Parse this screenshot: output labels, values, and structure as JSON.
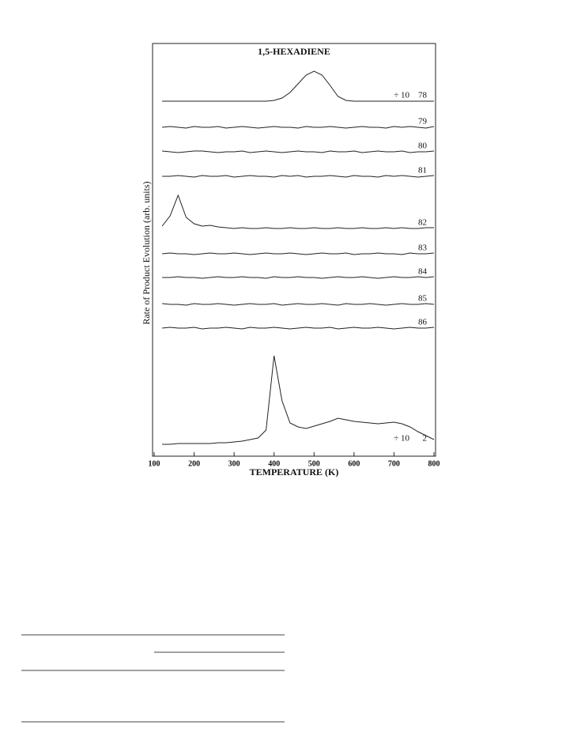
{
  "chart_data": {
    "type": "line",
    "title": "1,5-HEXADIENE",
    "x_label": "TEMPERATURE (K)",
    "y_label": "Rate of Product Evolution (arb. units)",
    "xlim": [
      100,
      800
    ],
    "xticks": [
      100,
      200,
      300,
      400,
      500,
      600,
      700,
      800
    ],
    "x": [
      120,
      140,
      160,
      180,
      200,
      220,
      240,
      260,
      280,
      300,
      320,
      340,
      360,
      380,
      400,
      420,
      440,
      460,
      480,
      500,
      520,
      540,
      560,
      580,
      600,
      620,
      640,
      660,
      680,
      700,
      720,
      740,
      760,
      780,
      800
    ],
    "series": [
      {
        "name": "78",
        "annotation": "÷ 10",
        "color": "#222",
        "values": [
          0,
          0,
          0,
          0,
          0,
          0,
          0,
          0,
          0,
          0,
          0,
          0,
          0,
          0,
          1,
          4,
          11,
          22,
          33,
          38,
          33,
          20,
          6,
          1,
          0,
          0,
          0,
          0,
          0,
          0,
          0,
          0,
          0,
          0,
          0
        ]
      },
      {
        "name": "79",
        "color": "#222",
        "values": [
          0,
          1,
          0,
          -1,
          1,
          0,
          0,
          1,
          -1,
          0,
          1,
          0,
          -1,
          0,
          1,
          0,
          0,
          -1,
          1,
          0,
          0,
          1,
          0,
          -1,
          0,
          1,
          0,
          0,
          -1,
          1,
          0,
          1,
          0,
          -1,
          1
        ]
      },
      {
        "name": "80",
        "color": "#222",
        "values": [
          1,
          0,
          -1,
          0,
          1,
          1,
          0,
          -1,
          0,
          0,
          1,
          -1,
          0,
          1,
          0,
          -1,
          0,
          1,
          0,
          0,
          -1,
          1,
          0,
          0,
          1,
          -1,
          0,
          1,
          0,
          0,
          1,
          -1,
          0,
          0,
          1
        ]
      },
      {
        "name": "81",
        "color": "#222",
        "values": [
          0,
          0,
          1,
          0,
          -1,
          1,
          0,
          0,
          1,
          -1,
          0,
          1,
          0,
          0,
          -1,
          1,
          0,
          1,
          -1,
          0,
          0,
          1,
          0,
          -1,
          1,
          0,
          0,
          -1,
          1,
          0,
          1,
          0,
          -1,
          0,
          1
        ]
      },
      {
        "name": "82",
        "color": "#222",
        "values": [
          3,
          16,
          42,
          14,
          6,
          3,
          4,
          2,
          1,
          0,
          1,
          0,
          0,
          1,
          0,
          0,
          1,
          0,
          0,
          1,
          0,
          0,
          1,
          0,
          0,
          1,
          0,
          0,
          1,
          0,
          1,
          0,
          0,
          1,
          1
        ]
      },
      {
        "name": "83",
        "color": "#222",
        "values": [
          0,
          1,
          0,
          0,
          -1,
          0,
          1,
          0,
          0,
          1,
          0,
          -1,
          0,
          1,
          0,
          0,
          1,
          0,
          -1,
          0,
          1,
          0,
          0,
          1,
          -1,
          0,
          0,
          1,
          0,
          0,
          -1,
          1,
          0,
          0,
          1
        ]
      },
      {
        "name": "84",
        "color": "#222",
        "values": [
          0,
          0,
          1,
          0,
          0,
          -1,
          0,
          1,
          0,
          0,
          1,
          0,
          0,
          -1,
          1,
          0,
          0,
          1,
          0,
          0,
          -1,
          0,
          1,
          0,
          0,
          1,
          0,
          -1,
          0,
          1,
          0,
          0,
          1,
          0,
          1
        ]
      },
      {
        "name": "85",
        "color": "#222",
        "values": [
          1,
          0,
          0,
          -1,
          1,
          0,
          0,
          1,
          0,
          -1,
          0,
          1,
          0,
          0,
          1,
          -1,
          0,
          1,
          0,
          0,
          1,
          0,
          -1,
          1,
          0,
          0,
          1,
          0,
          -1,
          0,
          1,
          0,
          0,
          1,
          0
        ]
      },
      {
        "name": "86",
        "color": "#222",
        "values": [
          0,
          1,
          0,
          0,
          1,
          -1,
          0,
          0,
          1,
          0,
          -1,
          1,
          0,
          0,
          1,
          0,
          -1,
          0,
          1,
          0,
          0,
          1,
          -1,
          0,
          1,
          0,
          0,
          1,
          0,
          -1,
          0,
          1,
          0,
          0,
          1
        ]
      },
      {
        "name": "2",
        "annotation": "÷ 10",
        "color": "#222",
        "values": [
          0,
          0,
          1,
          1,
          1,
          1,
          1,
          2,
          2,
          3,
          4,
          6,
          8,
          18,
          112,
          55,
          27,
          22,
          20,
          23,
          26,
          29,
          33,
          31,
          29,
          28,
          27,
          26,
          27,
          28,
          26,
          22,
          16,
          11,
          6
        ]
      }
    ]
  }
}
